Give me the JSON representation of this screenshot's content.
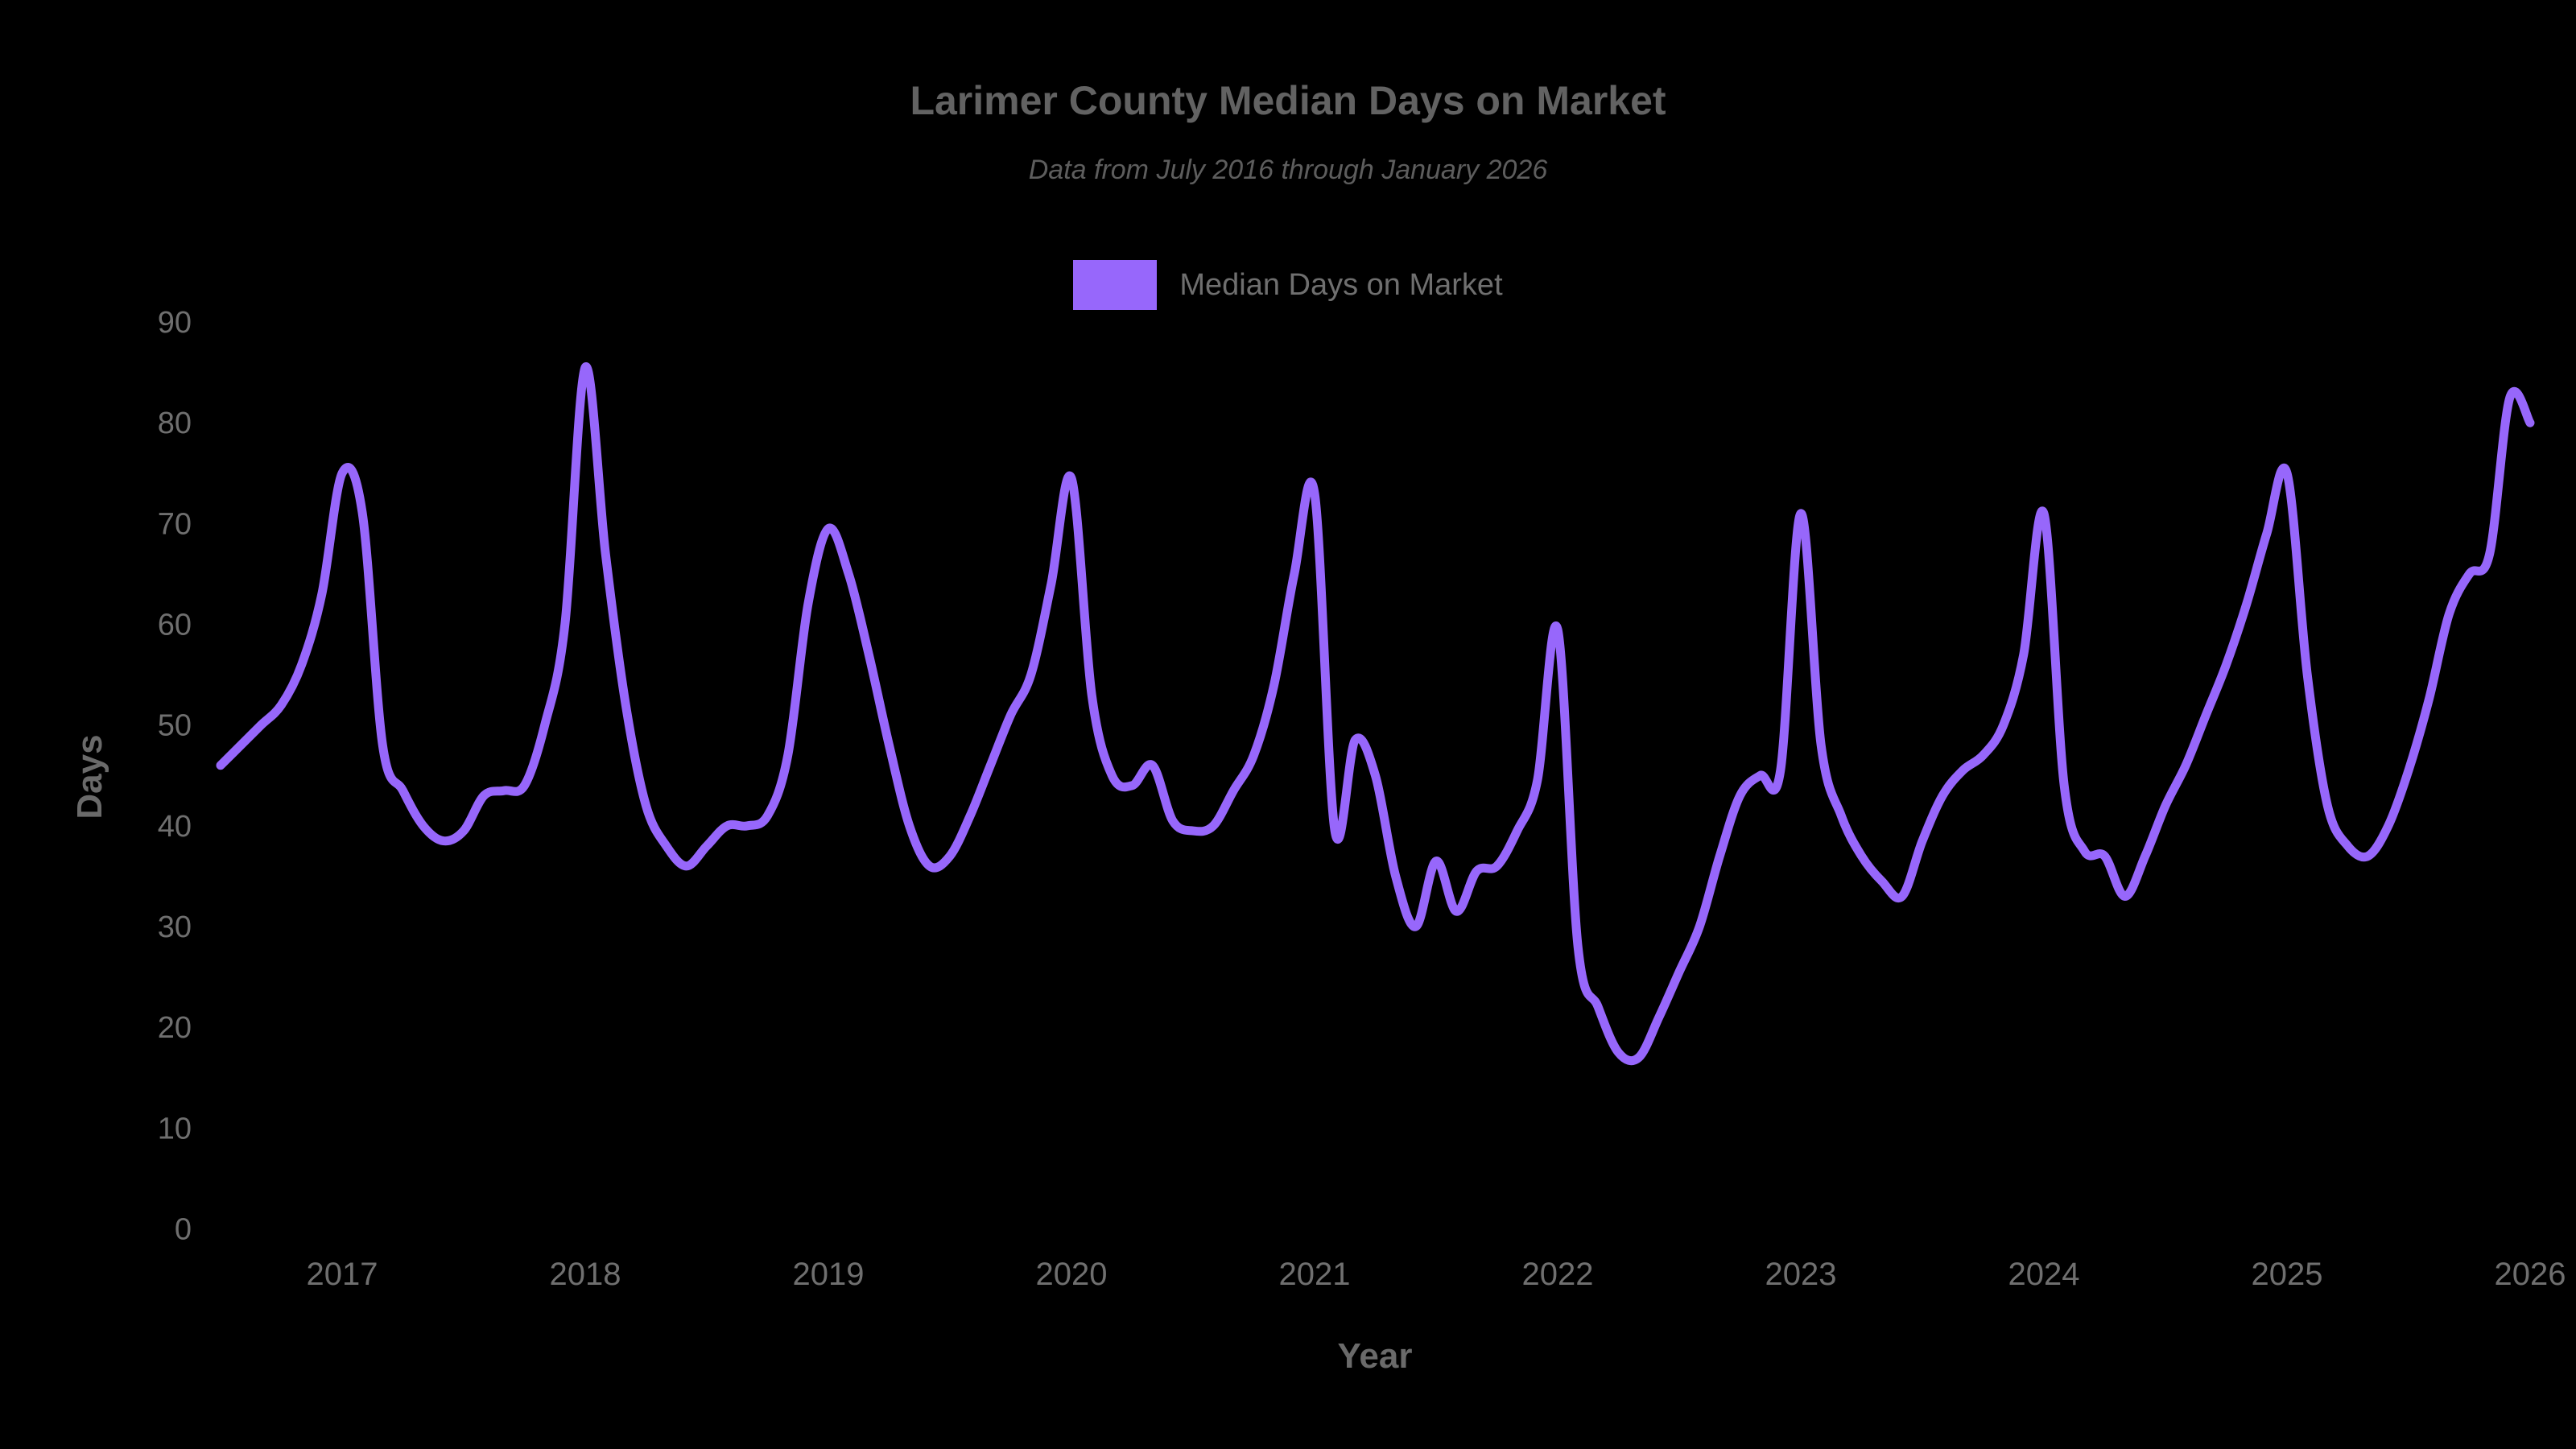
{
  "page": {
    "background_color": "#000000"
  },
  "chart_data": {
    "type": "line",
    "title": "Larimer County Median Days on Market",
    "subtitle": "Data from July 2016 through January 2026",
    "xlabel": "Year",
    "ylabel": "Days",
    "grid": false,
    "legend_position": "top-center",
    "background_color": "#000000",
    "line_color": "#9767fb",
    "title_color": "#626262",
    "subtitle_color": "#5d5d5d",
    "tick_color": "#6f6f6f",
    "axis_title_color": "#6a6a6a",
    "ylim": [
      0,
      91
    ],
    "yticks": [
      0,
      10,
      20,
      30,
      40,
      50,
      60,
      70,
      80,
      90
    ],
    "xticks": [
      {
        "label": "2017",
        "month_index": 6
      },
      {
        "label": "2018",
        "month_index": 18
      },
      {
        "label": "2019",
        "month_index": 30
      },
      {
        "label": "2020",
        "month_index": 42
      },
      {
        "label": "2021",
        "month_index": 54
      },
      {
        "label": "2022",
        "month_index": 66
      },
      {
        "label": "2023",
        "month_index": 78
      },
      {
        "label": "2024",
        "month_index": 90
      },
      {
        "label": "2025",
        "month_index": 102
      },
      {
        "label": "2026",
        "month_index": 114
      }
    ],
    "x": [
      "2016-07",
      "2016-08",
      "2016-09",
      "2016-10",
      "2016-11",
      "2016-12",
      "2017-01",
      "2017-02",
      "2017-03",
      "2017-04",
      "2017-05",
      "2017-06",
      "2017-07",
      "2017-08",
      "2017-09",
      "2017-10",
      "2017-11",
      "2017-12",
      "2018-01",
      "2018-02",
      "2018-03",
      "2018-04",
      "2018-05",
      "2018-06",
      "2018-07",
      "2018-08",
      "2018-09",
      "2018-10",
      "2018-11",
      "2018-12",
      "2019-01",
      "2019-02",
      "2019-03",
      "2019-04",
      "2019-05",
      "2019-06",
      "2019-07",
      "2019-08",
      "2019-09",
      "2019-10",
      "2019-11",
      "2019-12",
      "2020-01",
      "2020-02",
      "2020-03",
      "2020-04",
      "2020-05",
      "2020-06",
      "2020-07",
      "2020-08",
      "2020-09",
      "2020-10",
      "2020-11",
      "2020-12",
      "2021-01",
      "2021-02",
      "2021-03",
      "2021-04",
      "2021-05",
      "2021-06",
      "2021-07",
      "2021-08",
      "2021-09",
      "2021-10",
      "2021-11",
      "2021-12",
      "2022-01",
      "2022-02",
      "2022-03",
      "2022-04",
      "2022-05",
      "2022-06",
      "2022-07",
      "2022-08",
      "2022-09",
      "2022-10",
      "2022-11",
      "2022-12",
      "2023-01",
      "2023-02",
      "2023-03",
      "2023-04",
      "2023-05",
      "2023-06",
      "2023-07",
      "2023-08",
      "2023-09",
      "2023-10",
      "2023-11",
      "2023-12",
      "2024-01",
      "2024-02",
      "2024-03",
      "2024-04",
      "2024-05",
      "2024-06",
      "2024-07",
      "2024-08",
      "2024-09",
      "2024-10",
      "2024-11",
      "2024-12",
      "2025-01",
      "2025-02",
      "2025-03",
      "2025-04",
      "2025-05",
      "2025-06",
      "2025-07",
      "2025-08",
      "2025-09",
      "2025-10",
      "2025-11",
      "2025-12",
      "2026-01"
    ],
    "series": [
      {
        "name": "Median Days on Market",
        "color": "#9767fb",
        "values": [
          46,
          48,
          50,
          52,
          56,
          63,
          75,
          71,
          48,
          43.5,
          40,
          38.5,
          39.5,
          43,
          43.5,
          44,
          50,
          60,
          85.5,
          67,
          52,
          42,
          38,
          36,
          38,
          40,
          40,
          41,
          47,
          62,
          69.5,
          65,
          57,
          48,
          40,
          36,
          37,
          41,
          46,
          51,
          55,
          64,
          74.5,
          53,
          45,
          44,
          46,
          40.5,
          39.5,
          40,
          43.5,
          47,
          54,
          65,
          73,
          39.5,
          48.5,
          45,
          35,
          30,
          36.5,
          31.5,
          35.5,
          36,
          39.5,
          44.5,
          59.5,
          28,
          22,
          17.5,
          17,
          21,
          25.5,
          30,
          37,
          43,
          45,
          45.5,
          71,
          48,
          41,
          37,
          34.5,
          33,
          38.5,
          43,
          45.5,
          47,
          50,
          57,
          71,
          44,
          37.5,
          37,
          33,
          37,
          42,
          46,
          51,
          56,
          62,
          69,
          75,
          55,
          42,
          38,
          37,
          40,
          45.5,
          52.5,
          61,
          65,
          67,
          82.5,
          80
        ]
      }
    ]
  }
}
